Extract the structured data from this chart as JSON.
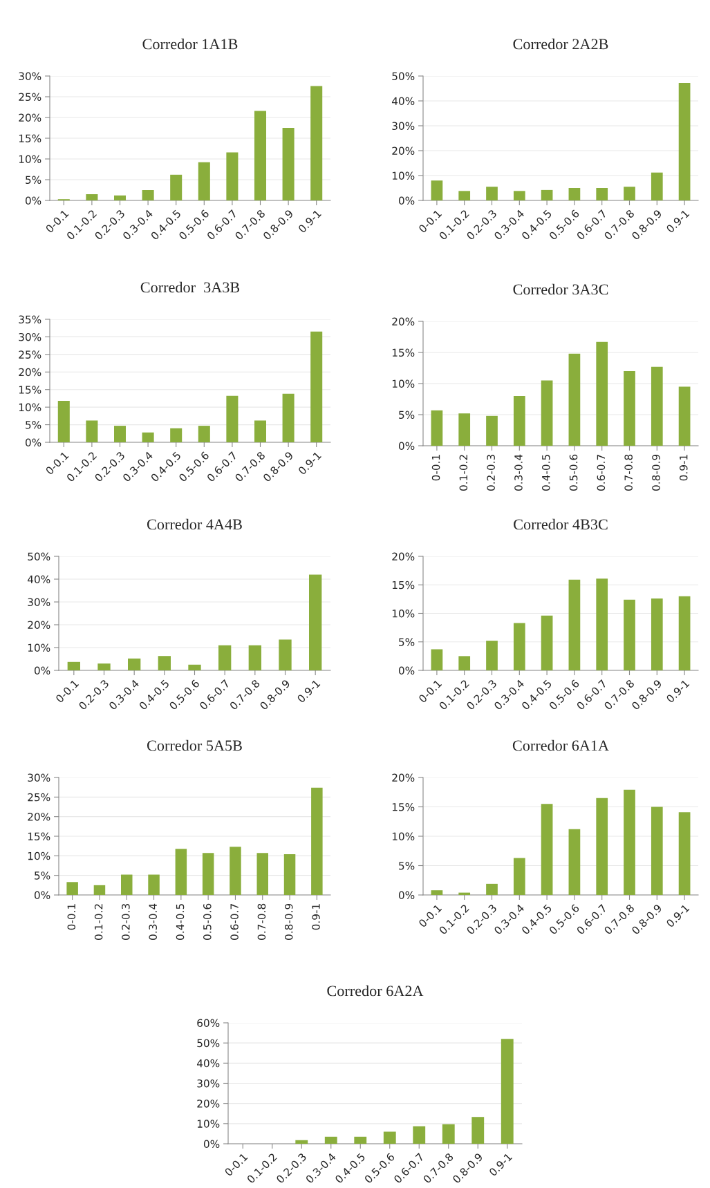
{
  "chart_data": [
    {
      "type": "bar",
      "title": "Corredor 1A1B",
      "categories": [
        "0-0.1",
        "0.1-0.2",
        "0.2-0.3",
        "0.3-0.4",
        "0.4-0.5",
        "0.5-0.6",
        "0.6-0.7",
        "0.7-0.8",
        "0.8-0.9",
        "0.9-1"
      ],
      "values": [
        0.3,
        1.5,
        1.2,
        2.5,
        6.2,
        9.2,
        11.6,
        21.6,
        17.5,
        27.6
      ],
      "color": "#8aae3c",
      "ylim": [
        0,
        30
      ],
      "yticks": [
        {
          "value": 0,
          "label": "0%"
        },
        {
          "value": 5,
          "label": "5%"
        },
        {
          "value": 10,
          "label": "10%"
        },
        {
          "value": 15,
          "label": "15%"
        },
        {
          "value": 20,
          "label": "20%"
        },
        {
          "value": 25,
          "label": "25%"
        },
        {
          "value": 30,
          "label": "30%"
        }
      ],
      "grid": "y"
    },
    {
      "type": "bar",
      "title": "Corredor 2A2B",
      "categories": [
        "0-0.1",
        "0.1-0.2",
        "0.2-0.3",
        "0.3-0.4",
        "0.4-0.5",
        "0.5-0.6",
        "0.6-0.7",
        "0.7-0.8",
        "0.8-0.9",
        "0.9-1"
      ],
      "values": [
        8,
        3.8,
        5.5,
        3.8,
        4.2,
        5,
        5,
        5.5,
        11.2,
        47.2
      ],
      "color": "#8aae3c",
      "ylim": [
        0,
        50
      ],
      "yticks": [
        {
          "value": 0,
          "label": "0%"
        },
        {
          "value": 10,
          "label": "10%"
        },
        {
          "value": 20,
          "label": "20%"
        },
        {
          "value": 30,
          "label": "30%"
        },
        {
          "value": 40,
          "label": "40%"
        },
        {
          "value": 50,
          "label": "50%"
        }
      ],
      "grid": "y"
    },
    {
      "type": "bar",
      "title": "Corredor  3A3B",
      "categories": [
        "0-0.1",
        "0.1-0.2",
        "0.2-0.3",
        "0.3-0.4",
        "0.4-0.5",
        "0.5-0.6",
        "0.6-0.7",
        "0.7-0.8",
        "0.8-0.9",
        "0.9-1"
      ],
      "values": [
        11.8,
        6.2,
        4.7,
        2.8,
        4,
        4.7,
        13.2,
        6.2,
        13.8,
        31.5
      ],
      "color": "#8aae3c",
      "ylim": [
        0,
        35
      ],
      "yticks": [
        {
          "value": 0,
          "label": "0%"
        },
        {
          "value": 5,
          "label": "5%"
        },
        {
          "value": 10,
          "label": "10%"
        },
        {
          "value": 15,
          "label": "15%"
        },
        {
          "value": 20,
          "label": "20%"
        },
        {
          "value": 25,
          "label": "25%"
        },
        {
          "value": 30,
          "label": "30%"
        },
        {
          "value": 35,
          "label": "35%"
        }
      ],
      "grid": "y"
    },
    {
      "type": "bar",
      "title": "Corredor 3A3C",
      "categories": [
        "0-0.1",
        "0.1-0.2",
        "0.2-0.3",
        "0.3-0.4",
        "0.4-0.5",
        "0.5-0.6",
        "0.6-0.7",
        "0.7-0.8",
        "0.8-0.9",
        "0.9-1"
      ],
      "values": [
        5.7,
        5.2,
        4.8,
        8,
        10.5,
        14.8,
        16.7,
        12,
        12.7,
        9.5
      ],
      "color": "#8aae3c",
      "ylim": [
        0,
        20
      ],
      "yticks": [
        {
          "value": 0,
          "label": "0%"
        },
        {
          "value": 5,
          "label": "5%"
        },
        {
          "value": 10,
          "label": "10%"
        },
        {
          "value": 15,
          "label": "15%"
        },
        {
          "value": 20,
          "label": "20%"
        }
      ],
      "grid": "y"
    },
    {
      "type": "bar",
      "title": "Corredor 4A4B",
      "categories": [
        "0-0.1",
        "0.2-0.3",
        "0.3-0.4",
        "0.4-0.5",
        "0.5-0.6",
        "0.6-0.7",
        "0.7-0.8",
        "0.8-0.9",
        "0.9-1"
      ],
      "values": [
        3.7,
        3,
        5.2,
        6.3,
        2.5,
        11,
        11,
        13.5,
        42
      ],
      "color": "#8aae3c",
      "ylim": [
        0,
        50
      ],
      "yticks": [
        {
          "value": 0,
          "label": "0%"
        },
        {
          "value": 10,
          "label": "10%"
        },
        {
          "value": 20,
          "label": "20%"
        },
        {
          "value": 30,
          "label": "30%"
        },
        {
          "value": 40,
          "label": "40%"
        },
        {
          "value": 50,
          "label": "50%"
        }
      ],
      "grid": "y"
    },
    {
      "type": "bar",
      "title": "Corredor 4B3C",
      "categories": [
        "0-0.1",
        "0.1-0.2",
        "0.2-0.3",
        "0.3-0.4",
        "0.4-0.5",
        "0.5-0.6",
        "0.6-0.7",
        "0.7-0.8",
        "0.8-0.9",
        "0.9-1"
      ],
      "values": [
        3.7,
        2.5,
        5.2,
        8.3,
        9.6,
        15.9,
        16.1,
        12.4,
        12.6,
        13
      ],
      "color": "#8aae3c",
      "ylim": [
        0,
        20
      ],
      "yticks": [
        {
          "value": 0,
          "label": "0%"
        },
        {
          "value": 5,
          "label": "5%"
        },
        {
          "value": 10,
          "label": "10%"
        },
        {
          "value": 15,
          "label": "15%"
        },
        {
          "value": 20,
          "label": "20%"
        }
      ],
      "grid": "y"
    },
    {
      "type": "bar",
      "title": "Corredor 5A5B",
      "categories": [
        "0-0.1",
        "0.1-0.2",
        "0.2-0.3",
        "0.3-0.4",
        "0.4-0.5",
        "0.5-0.6",
        "0.6-0.7",
        "0.7-0.8",
        "0.8-0.9",
        "0.9-1"
      ],
      "values": [
        3.3,
        2.5,
        5.2,
        5.2,
        11.8,
        10.7,
        12.3,
        10.7,
        10.4,
        27.4
      ],
      "color": "#8aae3c",
      "ylim": [
        0,
        30
      ],
      "yticks": [
        {
          "value": 0,
          "label": "0%"
        },
        {
          "value": 5,
          "label": "5%"
        },
        {
          "value": 10,
          "label": "10%"
        },
        {
          "value": 15,
          "label": "15%"
        },
        {
          "value": 20,
          "label": "20%"
        },
        {
          "value": 25,
          "label": "25%"
        },
        {
          "value": 30,
          "label": "30%"
        }
      ],
      "grid": "y"
    },
    {
      "type": "bar",
      "title": "Corredor 6A1A",
      "categories": [
        "0-0.1",
        "0.1-0.2",
        "0.2-0.3",
        "0.3-0.4",
        "0.4-0.5",
        "0.5-0.6",
        "0.6-0.7",
        "0.7-0.8",
        "0.8-0.9",
        "0.9-1"
      ],
      "values": [
        0.8,
        0.4,
        1.9,
        6.3,
        15.5,
        11.2,
        16.5,
        17.9,
        15,
        14.1
      ],
      "color": "#8aae3c",
      "ylim": [
        0,
        20
      ],
      "yticks": [
        {
          "value": 0,
          "label": "0%"
        },
        {
          "value": 5,
          "label": "5%"
        },
        {
          "value": 10,
          "label": "10%"
        },
        {
          "value": 15,
          "label": "15%"
        },
        {
          "value": 20,
          "label": "20%"
        }
      ],
      "grid": "y"
    },
    {
      "type": "bar",
      "title": "Corredor 6A2A",
      "categories": [
        "0-0.1",
        "0.1-0.2",
        "0.2-0.3",
        "0.3-0.4",
        "0.4-0.5",
        "0.5-0.6",
        "0.6-0.7",
        "0.7-0.8",
        "0.8-0.9",
        "0.9-1"
      ],
      "values": [
        0,
        0,
        1.8,
        3.5,
        3.5,
        6,
        8.7,
        9.7,
        13.3,
        52
      ],
      "color": "#8aae3c",
      "ylim": [
        0,
        60
      ],
      "yticks": [
        {
          "value": 0,
          "label": "0%"
        },
        {
          "value": 10,
          "label": "10%"
        },
        {
          "value": 20,
          "label": "20%"
        },
        {
          "value": 30,
          "label": "30%"
        },
        {
          "value": 40,
          "label": "40%"
        },
        {
          "value": 50,
          "label": "50%"
        },
        {
          "value": 60,
          "label": "60%"
        }
      ],
      "grid": "y"
    }
  ]
}
